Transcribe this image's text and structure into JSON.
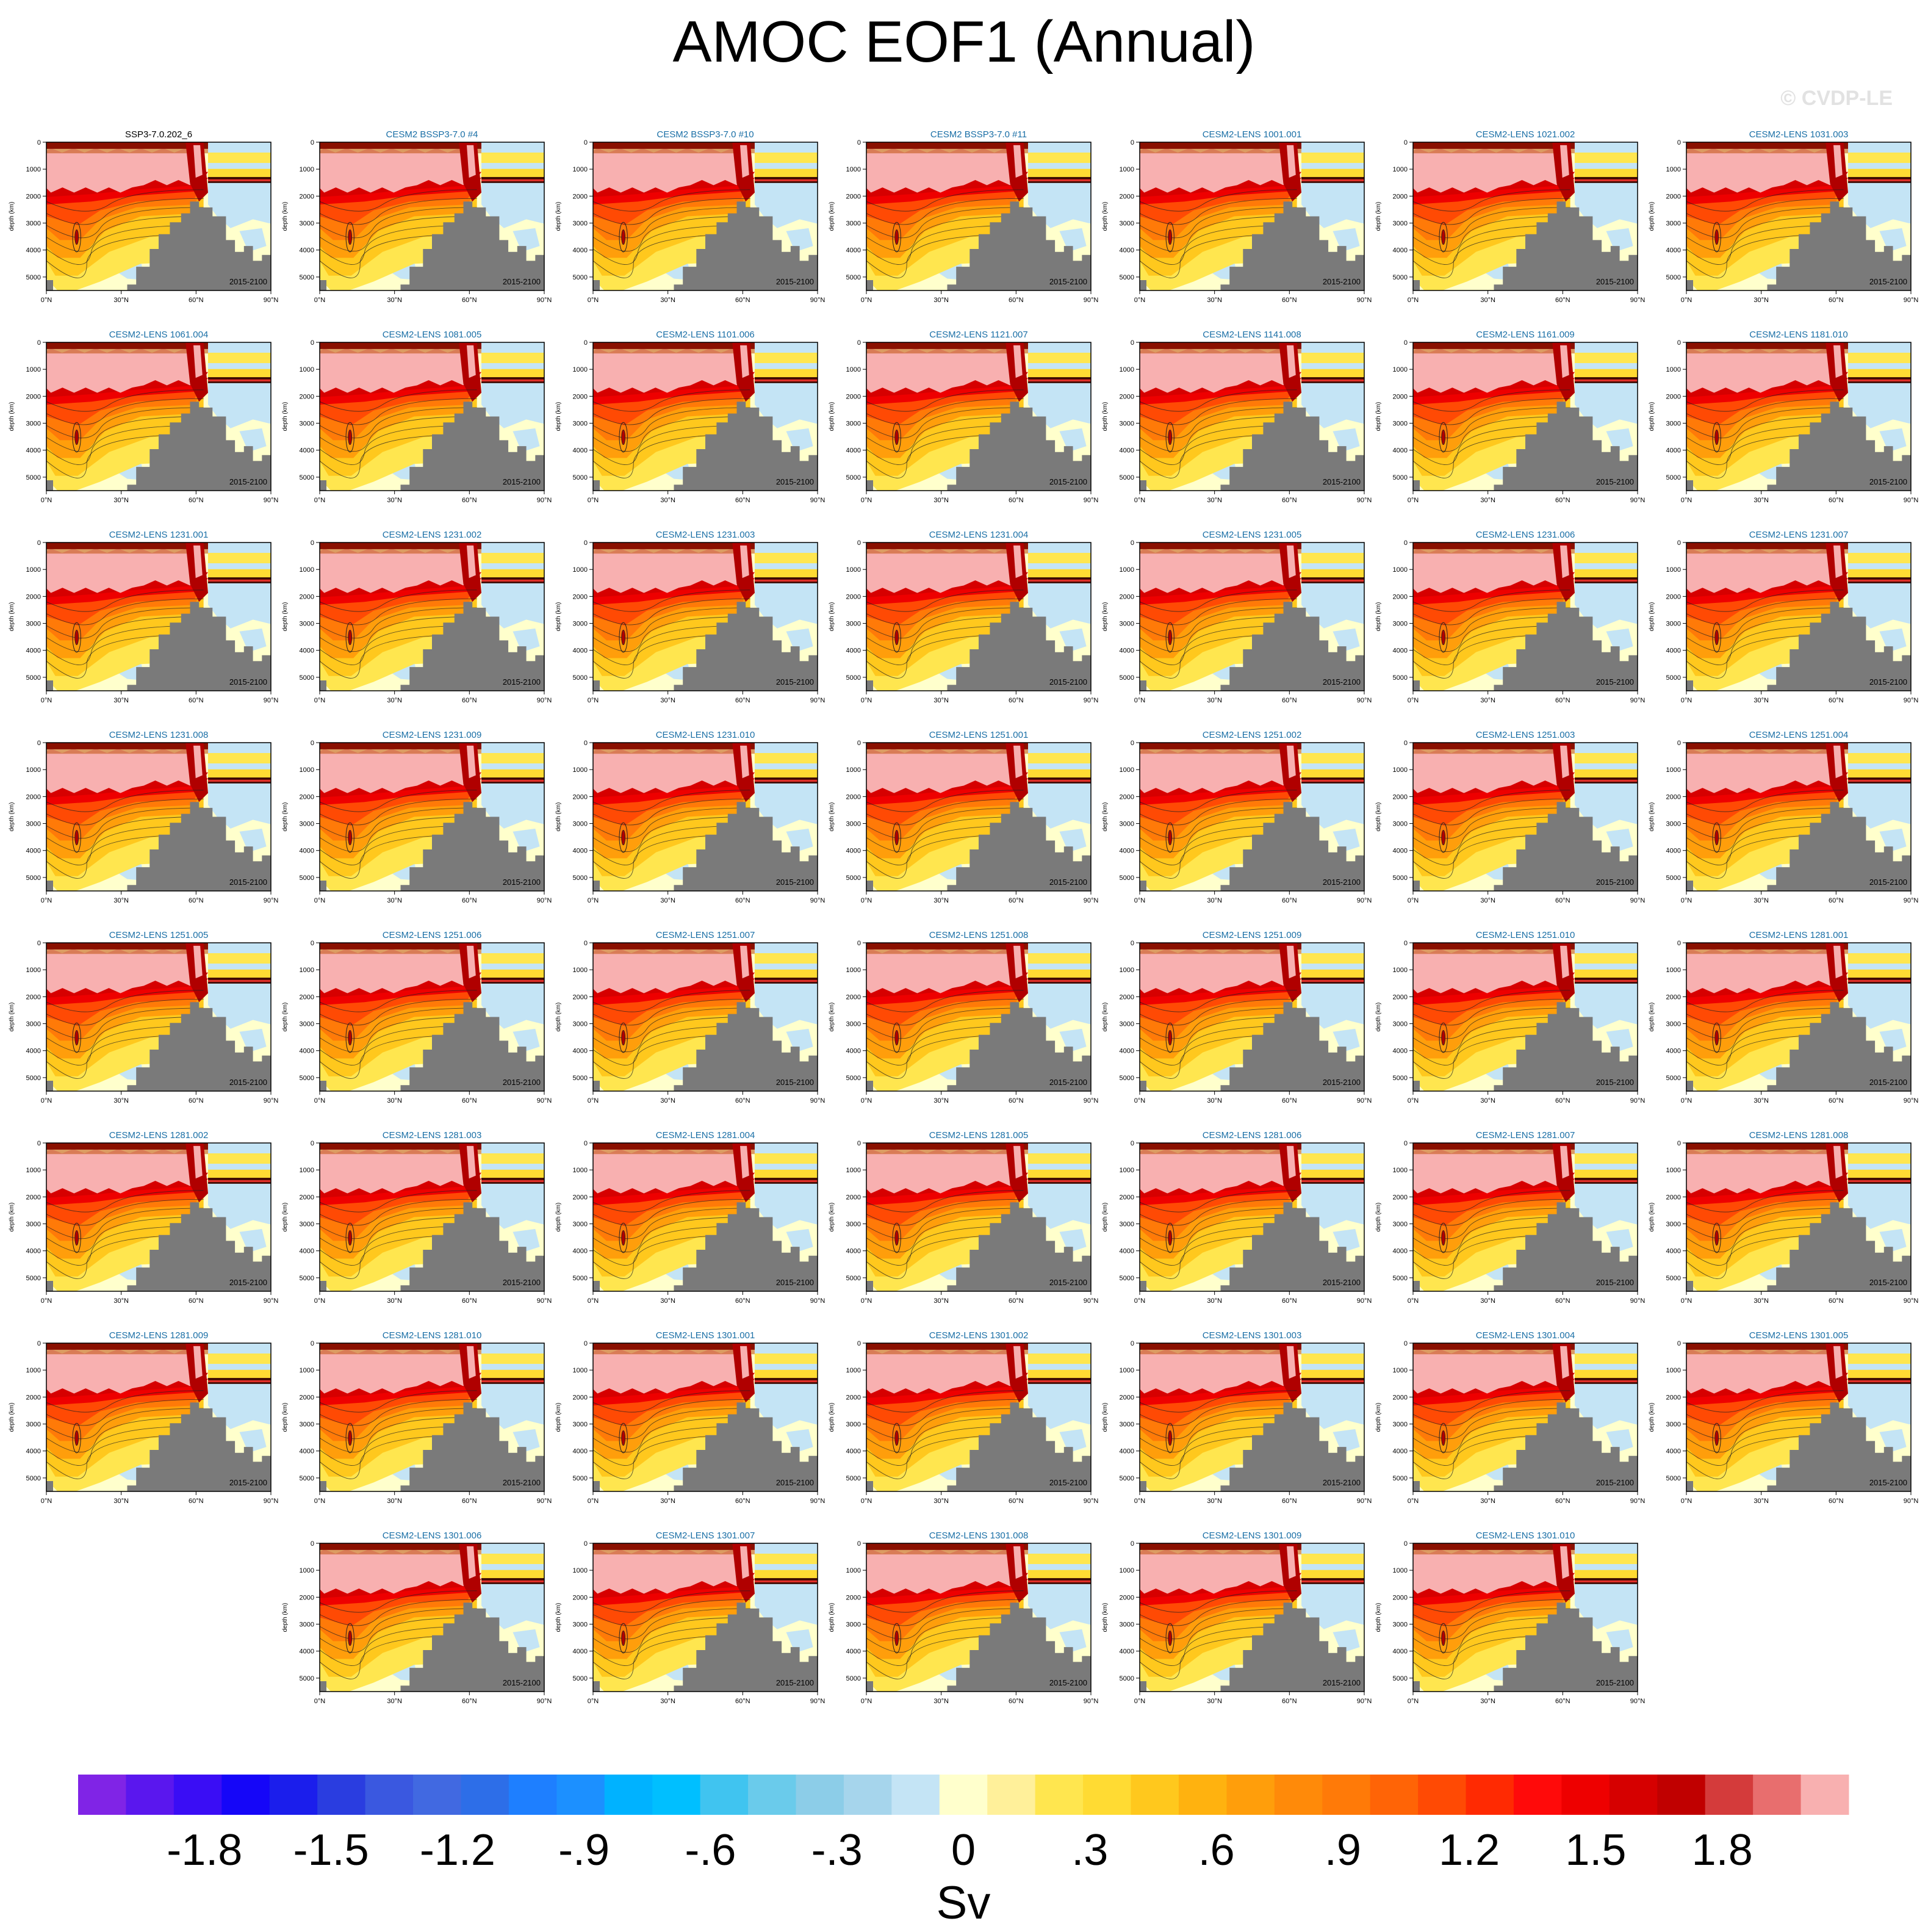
{
  "figure": {
    "title": "AMOC EOF1 (Annual)",
    "watermark": "© CVDP-LE",
    "period_label": "2015-2100"
  },
  "colors": {
    "positive_saturated": "#f8b0b0",
    "land_mask": "#7a7a7a",
    "panel_title_first": "#000000",
    "panel_title_ensemble": "#1a6fa6"
  },
  "chart_data": {
    "type": "heatmap",
    "title": "AMOC EOF1 (Annual)",
    "units": "Sv",
    "x_axis": {
      "ticks": [
        "0°N",
        "30°N",
        "60°N",
        "90°N"
      ],
      "range": [
        0,
        90
      ]
    },
    "y_axis": {
      "label": "depth (km)",
      "ticks": [
        "0",
        "1000",
        "2000",
        "3000",
        "4000",
        "5000"
      ],
      "range": [
        0,
        5500
      ],
      "inverted": true
    },
    "panel_period": "2015-2100",
    "panels": [
      "SSP3-7.0.202_6",
      "CESM2 BSSP3-7.0 #4",
      "CESM2 BSSP3-7.0 #10",
      "CESM2 BSSP3-7.0 #11",
      "CESM2-LENS 1001.001",
      "CESM2-LENS 1021.002",
      "CESM2-LENS 1031.003",
      "CESM2-LENS 1061.004",
      "CESM2-LENS 1081.005",
      "CESM2-LENS 1101.006",
      "CESM2-LENS 1121.007",
      "CESM2-LENS 1141.008",
      "CESM2-LENS 1161.009",
      "CESM2-LENS 1181.010",
      "CESM2-LENS 1231.001",
      "CESM2-LENS 1231.002",
      "CESM2-LENS 1231.003",
      "CESM2-LENS 1231.004",
      "CESM2-LENS 1231.005",
      "CESM2-LENS 1231.006",
      "CESM2-LENS 1231.007",
      "CESM2-LENS 1231.008",
      "CESM2-LENS 1231.009",
      "CESM2-LENS 1231.010",
      "CESM2-LENS 1251.001",
      "CESM2-LENS 1251.002",
      "CESM2-LENS 1251.003",
      "CESM2-LENS 1251.004",
      "CESM2-LENS 1251.005",
      "CESM2-LENS 1251.006",
      "CESM2-LENS 1251.007",
      "CESM2-LENS 1251.008",
      "CESM2-LENS 1251.009",
      "CESM2-LENS 1251.010",
      "CESM2-LENS 1281.001",
      "CESM2-LENS 1281.002",
      "CESM2-LENS 1281.003",
      "CESM2-LENS 1281.004",
      "CESM2-LENS 1281.005",
      "CESM2-LENS 1281.006",
      "CESM2-LENS 1281.007",
      "CESM2-LENS 1281.008",
      "CESM2-LENS 1281.009",
      "CESM2-LENS 1281.010",
      "CESM2-LENS 1301.001",
      "CESM2-LENS 1301.002",
      "CESM2-LENS 1301.003",
      "CESM2-LENS 1301.004",
      "CESM2-LENS 1301.005",
      "CESM2-LENS 1301.006",
      "CESM2-LENS 1301.007",
      "CESM2-LENS 1301.008",
      "CESM2-LENS 1301.009",
      "CESM2-LENS 1301.010"
    ],
    "colorbar": {
      "label": "Sv",
      "tick_labels": [
        "-1.8",
        "-1.5",
        "-1.2",
        "-.9",
        "-.6",
        "-.3",
        "0",
        ".3",
        ".6",
        ".9",
        "1.2",
        "1.5",
        "1.8"
      ],
      "tick_values": [
        -1.8,
        -1.5,
        -1.2,
        -0.9,
        -0.6,
        -0.3,
        0,
        0.3,
        0.6,
        0.9,
        1.2,
        1.5,
        1.8
      ],
      "range": [
        -2.1,
        2.1
      ],
      "colors": [
        "#8024e6",
        "#5a17ee",
        "#3a0df5",
        "#1506f8",
        "#1b1eec",
        "#2a3de0",
        "#3a58e0",
        "#4169e1",
        "#2d6ee8",
        "#1e7fff",
        "#1c90ff",
        "#00b2ff",
        "#00bfff",
        "#40c4f0",
        "#6acbeb",
        "#8ccde8",
        "#a6d5ec",
        "#c4e4f5",
        "#ffffcc",
        "#fff09a",
        "#ffe64f",
        "#ffdb33",
        "#ffc81d",
        "#ffb20f",
        "#ff9e0b",
        "#ff8a09",
        "#ff7a08",
        "#ff6406",
        "#ff4a04",
        "#ff2a02",
        "#ff0a0a",
        "#ee0000",
        "#d60000",
        "#c00000",
        "#d43b3b",
        "#e86e6e",
        "#f8b0b0"
      ]
    }
  }
}
